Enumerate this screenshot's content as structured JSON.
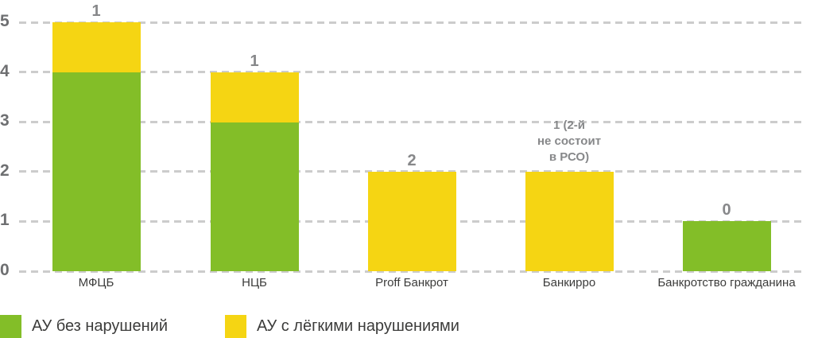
{
  "chart_data": {
    "type": "bar",
    "stacked": true,
    "title": "",
    "xlabel": "",
    "ylabel": "",
    "categories": [
      "МФЦБ",
      "НЦБ",
      "Proff Банкрот",
      "Банкирро",
      "Банкротство гражданина"
    ],
    "series": [
      {
        "name": "АУ без нарушений",
        "color": "#83be28",
        "values": [
          4,
          3,
          0,
          0,
          1
        ]
      },
      {
        "name": "АУ с лёгкими нарушениями",
        "color": "#f5d513",
        "values": [
          1,
          1,
          2,
          2,
          0
        ]
      }
    ],
    "bar_totals": [
      5,
      4,
      2,
      2,
      1
    ],
    "bar_value_labels": [
      "1",
      "1",
      "2",
      "1 (2-й\nне состоит\nв РСО)",
      "0"
    ],
    "ylim": [
      0,
      5
    ],
    "yticks": [
      0,
      1,
      2,
      3,
      4,
      5
    ],
    "grid": "horizontal-dashed",
    "legend_position": "bottom-left"
  },
  "legend": {
    "items": [
      {
        "label": "АУ без нарушений",
        "color": "#83be28"
      },
      {
        "label": "АУ с лёгкими нарушениями",
        "color": "#f5d513"
      }
    ]
  },
  "colors": {
    "grid": "#cccccc",
    "ytick_text": "#6e6f71",
    "bar_label_text": "#87888a",
    "axis_label_text": "#3c3c3b",
    "background": "#ffffff"
  }
}
